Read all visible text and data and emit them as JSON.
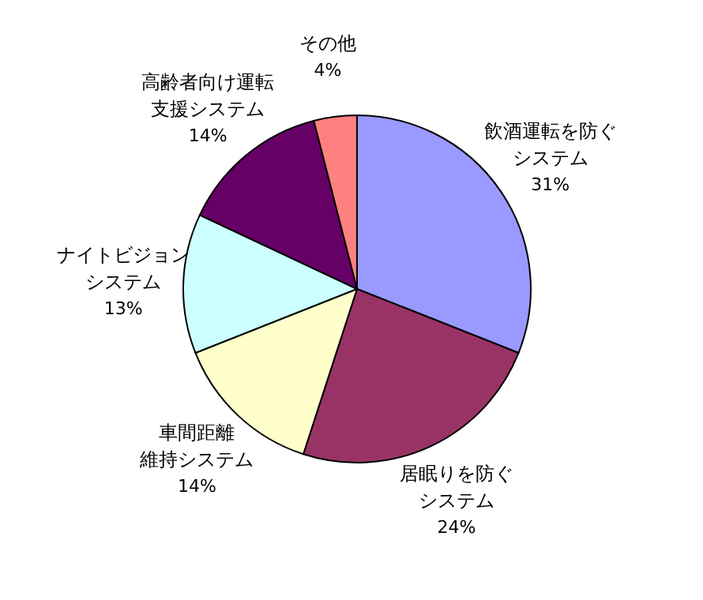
{
  "chart_data": {
    "type": "pie",
    "categories": [
      "飲酒運転を防ぐシステム",
      "居眠りを防ぐシステム",
      "車間距離維持システム",
      "ナイトビジョンシステム",
      "高齢者向け運転支援システム",
      "その他"
    ],
    "values": [
      31,
      24,
      14,
      13,
      14,
      4
    ],
    "value_labels": [
      "31%",
      "24%",
      "14%",
      "13%",
      "14%",
      "4%"
    ],
    "colors": [
      "#9999ff",
      "#993366",
      "#ffffcc",
      "#ccffff",
      "#660066",
      "#ff8080"
    ],
    "legend": false
  }
}
